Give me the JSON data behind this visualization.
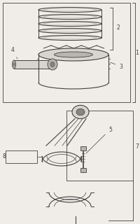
{
  "bg_color": "#f0ede8",
  "line_color": "#404040",
  "fill_light": "#d8d5d0",
  "fill_mid": "#b8b5b0",
  "fill_dark": "#888580",
  "label_color": "#1a1a1a",
  "font_size": 5.5
}
